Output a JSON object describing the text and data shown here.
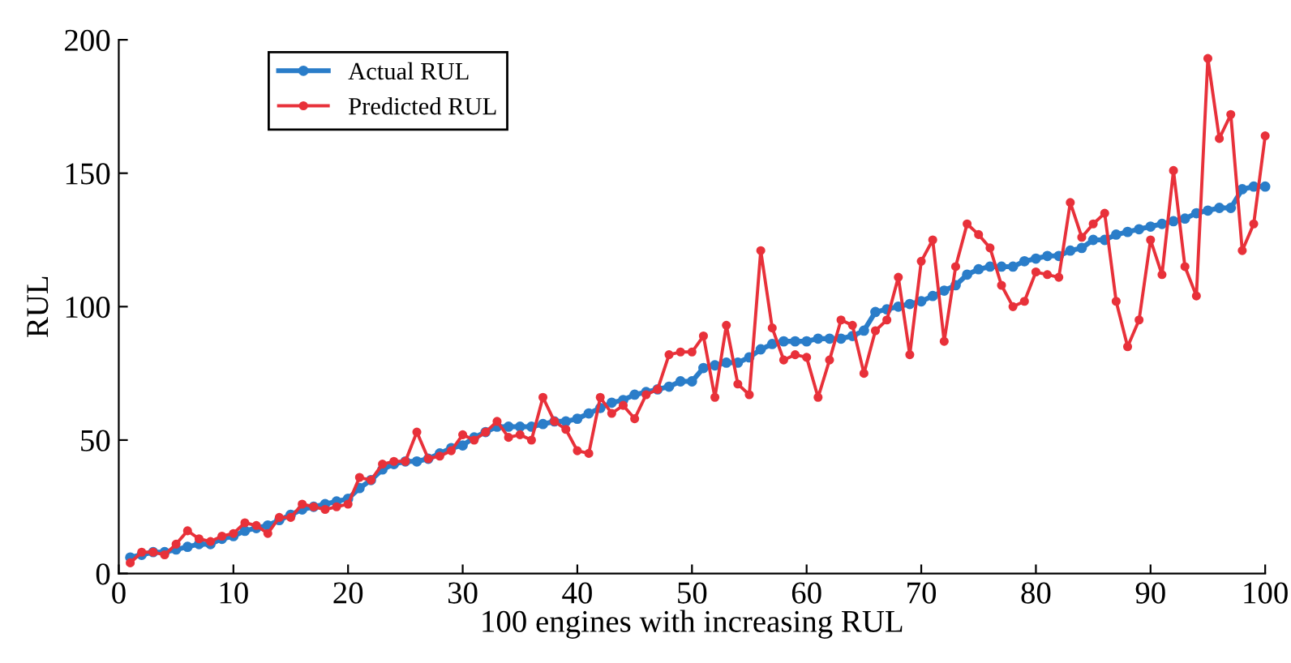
{
  "chart_data": {
    "type": "line",
    "xlabel": "100 engines with increasing RUL",
    "ylabel": "RUL",
    "x": [
      1,
      2,
      3,
      4,
      5,
      6,
      7,
      8,
      9,
      10,
      11,
      12,
      13,
      14,
      15,
      16,
      17,
      18,
      19,
      20,
      21,
      22,
      23,
      24,
      25,
      26,
      27,
      28,
      29,
      30,
      31,
      32,
      33,
      34,
      35,
      36,
      37,
      38,
      39,
      40,
      41,
      42,
      43,
      44,
      45,
      46,
      47,
      48,
      49,
      50,
      51,
      52,
      53,
      54,
      55,
      56,
      57,
      58,
      59,
      60,
      61,
      62,
      63,
      64,
      65,
      66,
      67,
      68,
      69,
      70,
      71,
      72,
      73,
      74,
      75,
      76,
      77,
      78,
      79,
      80,
      81,
      82,
      83,
      84,
      85,
      86,
      87,
      88,
      89,
      90,
      91,
      92,
      93,
      94,
      95,
      96,
      97,
      98,
      99,
      100
    ],
    "series": [
      {
        "name": "Actual RUL",
        "color": "#2a7dc9",
        "values": [
          6,
          7,
          8,
          8,
          9,
          10,
          11,
          11,
          13,
          14,
          16,
          17,
          18,
          20,
          22,
          24,
          25,
          26,
          27,
          28,
          32,
          35,
          39,
          41,
          42,
          42,
          43,
          45,
          47,
          48,
          51,
          53,
          55,
          55,
          55,
          55,
          56,
          57,
          57,
          58,
          60,
          62,
          64,
          65,
          67,
          68,
          69,
          70,
          72,
          72,
          77,
          78,
          79,
          79,
          81,
          84,
          86,
          87,
          87,
          87,
          88,
          88,
          88,
          89,
          91,
          98,
          99,
          100,
          101,
          102,
          104,
          106,
          108,
          112,
          114,
          115,
          115,
          115,
          117,
          118,
          119,
          119,
          121,
          122,
          125,
          125,
          127,
          128,
          129,
          130,
          131,
          132,
          133,
          135,
          136,
          137,
          137,
          144,
          145,
          145
        ]
      },
      {
        "name": "Predicted RUL",
        "color": "#e8313a",
        "values": [
          4,
          8,
          8,
          7,
          11,
          16,
          13,
          12,
          14,
          15,
          19,
          18,
          15,
          21,
          21,
          26,
          25,
          24,
          25,
          26,
          36,
          35,
          41,
          42,
          42,
          53,
          43,
          44,
          46,
          52,
          50,
          53,
          57,
          51,
          52,
          50,
          66,
          57,
          54,
          46,
          45,
          66,
          60,
          63,
          58,
          67,
          69,
          82,
          83,
          83,
          89,
          66,
          93,
          71,
          67,
          121,
          92,
          80,
          82,
          81,
          66,
          80,
          95,
          93,
          75,
          91,
          95,
          111,
          82,
          117,
          125,
          87,
          115,
          131,
          127,
          122,
          108,
          100,
          102,
          113,
          112,
          111,
          139,
          126,
          131,
          135,
          102,
          85,
          95,
          125,
          112,
          151,
          115,
          104,
          193,
          163,
          172,
          121,
          131,
          164
        ]
      }
    ],
    "xlim": [
      0,
      100
    ],
    "xticks": [
      0,
      10,
      20,
      30,
      40,
      50,
      60,
      70,
      80,
      90,
      100
    ],
    "ylim": [
      0,
      200
    ],
    "yticks": [
      0,
      50,
      100,
      150,
      200
    ],
    "marker": "circle",
    "line_style": "solid",
    "legend": "top left",
    "grid": false
  }
}
